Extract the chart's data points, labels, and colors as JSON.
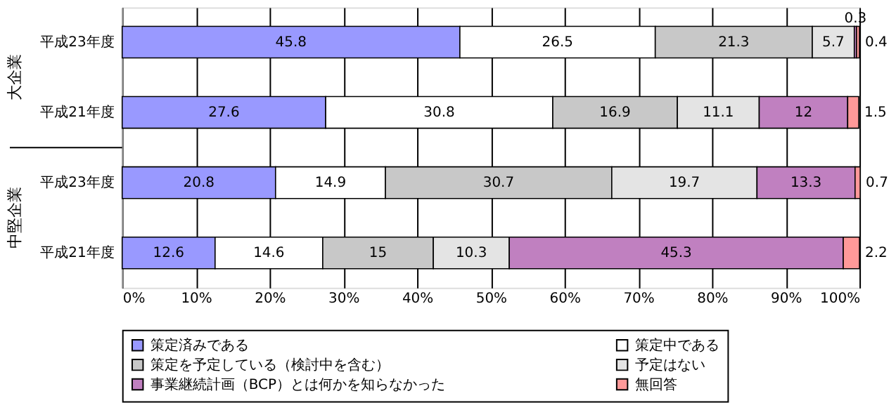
{
  "chart_data": {
    "type": "bar",
    "orientation": "horizontal",
    "stacked": true,
    "categories": [
      "平成23年度",
      "平成21年度",
      "平成23年度",
      "平成21年度"
    ],
    "series": [
      {
        "name": "策定済みである",
        "color": "#9999ff",
        "values": [
          45.8,
          27.6,
          20.8,
          12.6
        ]
      },
      {
        "name": "策定中である",
        "color": "#ffffff",
        "values": [
          26.5,
          30.8,
          14.9,
          14.6
        ]
      },
      {
        "name": "策定を予定している（検討中を含む）",
        "color": "#c8c8c8",
        "values": [
          21.3,
          16.9,
          30.7,
          15
        ]
      },
      {
        "name": "予定はない",
        "color": "#e4e4e4",
        "values": [
          5.7,
          11.1,
          19.7,
          10.3
        ]
      },
      {
        "name": "事業継続計画（BCP）とは何かを知らなかった",
        "color": "#c080c0",
        "values": [
          0.3,
          12,
          13.3,
          45.3
        ]
      },
      {
        "name": "無回答",
        "color": "#ff9999",
        "values": [
          0.4,
          1.5,
          0.7,
          2.2
        ]
      }
    ],
    "annotations": [
      "大企業",
      "中堅企業"
    ],
    "xlim": [
      0,
      100
    ],
    "xticks": [
      {
        "value": 0,
        "label": "0%"
      },
      {
        "value": 10,
        "label": "10%"
      },
      {
        "value": 20,
        "label": "20%"
      },
      {
        "value": 30,
        "label": "30%"
      },
      {
        "value": 40,
        "label": "40%"
      },
      {
        "value": 50,
        "label": "50%"
      },
      {
        "value": 60,
        "label": "60%"
      },
      {
        "value": 70,
        "label": "70%"
      },
      {
        "value": 80,
        "label": "80%"
      },
      {
        "value": 90,
        "label": "90%"
      },
      {
        "value": 100,
        "label": "100%"
      }
    ],
    "grid": "x",
    "legend": "bottom",
    "data_labels": true
  }
}
